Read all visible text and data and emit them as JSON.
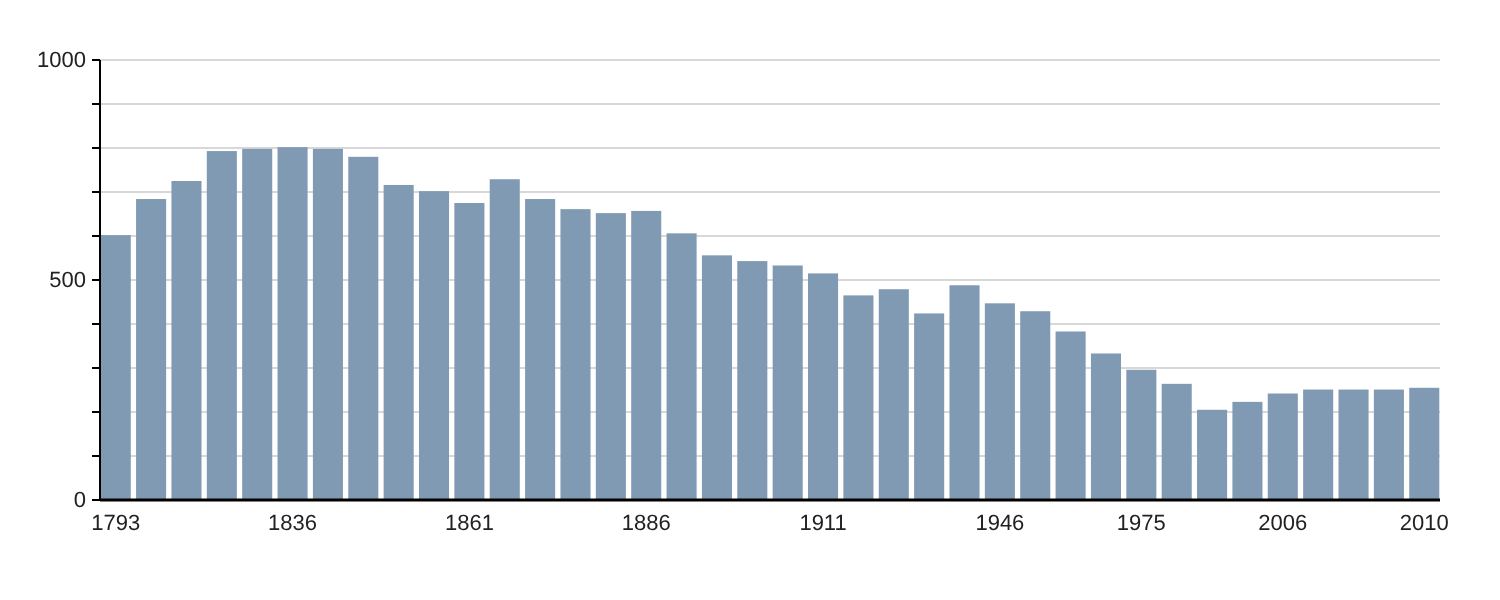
{
  "chart_data": {
    "type": "bar",
    "categories": [
      "1793",
      null,
      null,
      null,
      null,
      "1836",
      null,
      null,
      null,
      null,
      "1861",
      null,
      null,
      null,
      null,
      "1886",
      null,
      null,
      null,
      null,
      "1911",
      null,
      null,
      null,
      null,
      "1946",
      null,
      null,
      null,
      "1975",
      null,
      null,
      null,
      "2006",
      null,
      null,
      null,
      "2010"
    ],
    "values": [
      602,
      684,
      725,
      793,
      798,
      802,
      798,
      780,
      716,
      702,
      675,
      729,
      684,
      661,
      652,
      657,
      606,
      556,
      543,
      533,
      515,
      465,
      479,
      424,
      488,
      447,
      429,
      383,
      333,
      296,
      264,
      205,
      223,
      242,
      251,
      251,
      251,
      255
    ],
    "color": "#7f9ab2",
    "ylim": [
      0,
      1000
    ],
    "yticks": [
      0,
      {
        "value": 100,
        "label": null
      },
      {
        "value": 200,
        "label": null
      },
      {
        "value": 300,
        "label": null
      },
      {
        "value": 400,
        "label": null
      },
      500,
      {
        "value": 600,
        "label": null
      },
      {
        "value": 700,
        "label": null
      },
      {
        "value": 800,
        "label": null
      },
      {
        "value": 900,
        "label": null
      },
      1000
    ],
    "grid": true
  }
}
